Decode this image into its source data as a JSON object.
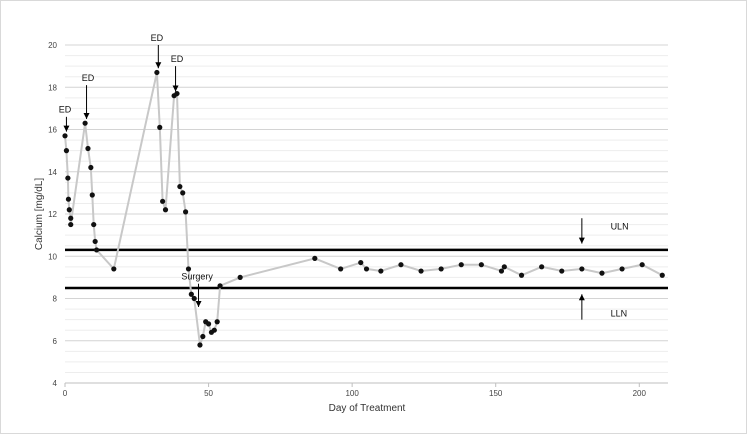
{
  "chart_data": {
    "type": "line",
    "xlabel": "Day of Treatment",
    "ylabel": "Calcium [mg/dL]",
    "xlim": [
      0,
      210
    ],
    "ylim": [
      4,
      20
    ],
    "x_ticks": [
      0,
      50,
      100,
      150,
      200
    ],
    "y_ticks": [
      4,
      6,
      8,
      10,
      12,
      14,
      16,
      18,
      20
    ],
    "grid": "horizontal",
    "series": [
      {
        "color": "#c8c8c8",
        "marker_color": "#111111",
        "points": [
          [
            0,
            15.7
          ],
          [
            0.5,
            15.0
          ],
          [
            1,
            13.7
          ],
          [
            1.2,
            12.7
          ],
          [
            1.5,
            12.2
          ],
          [
            2,
            11.8
          ],
          [
            2,
            11.5
          ],
          [
            7,
            16.3
          ],
          [
            8,
            15.1
          ],
          [
            9,
            14.2
          ],
          [
            9.5,
            12.9
          ],
          [
            10,
            11.5
          ],
          [
            10.5,
            10.7
          ],
          [
            11,
            10.3
          ],
          [
            17,
            9.4
          ],
          [
            32,
            18.7
          ],
          [
            33,
            16.1
          ],
          [
            34,
            12.6
          ],
          [
            35,
            12.2
          ],
          [
            38,
            17.6
          ],
          [
            39,
            17.7
          ],
          [
            40,
            13.3
          ],
          [
            41,
            13.0
          ],
          [
            42,
            12.1
          ],
          [
            43,
            9.4
          ],
          [
            44,
            8.2
          ],
          [
            45,
            8.0
          ],
          [
            47,
            5.8
          ],
          [
            48,
            6.2
          ],
          [
            49,
            6.9
          ],
          [
            50,
            6.8
          ],
          [
            51,
            6.4
          ],
          [
            52,
            6.5
          ],
          [
            53,
            6.9
          ],
          [
            54,
            8.6
          ],
          [
            61,
            9.0
          ],
          [
            87,
            9.9
          ],
          [
            96,
            9.4
          ],
          [
            103,
            9.7
          ],
          [
            105,
            9.4
          ],
          [
            110,
            9.3
          ],
          [
            117,
            9.6
          ],
          [
            124,
            9.3
          ],
          [
            131,
            9.4
          ],
          [
            138,
            9.6
          ],
          [
            145,
            9.6
          ],
          [
            152,
            9.3
          ],
          [
            153,
            9.5
          ],
          [
            159,
            9.1
          ],
          [
            166,
            9.5
          ],
          [
            173,
            9.3
          ],
          [
            180,
            9.4
          ],
          [
            187,
            9.2
          ],
          [
            194,
            9.4
          ],
          [
            201,
            9.6
          ],
          [
            208,
            9.1
          ]
        ]
      }
    ],
    "reference_lines": [
      {
        "y": 10.3,
        "label": "ULN",
        "label_x": 190,
        "label_y": 11.4,
        "arrow": "down",
        "arrow_x": 180,
        "arrow_from": 11.8,
        "arrow_to": 10.6,
        "color": "#000000"
      },
      {
        "y": 8.5,
        "label": "LLN",
        "label_x": 190,
        "label_y": 7.3,
        "arrow": "up",
        "arrow_x": 180,
        "arrow_from": 7.0,
        "arrow_to": 8.2,
        "color": "#000000"
      }
    ],
    "annotations": [
      {
        "text": "ED",
        "text_x": 0,
        "text_y": 16.8,
        "arrow_x": 0.5,
        "arrow_from": 16.6,
        "arrow_to": 15.9
      },
      {
        "text": "ED",
        "text_x": 8,
        "text_y": 18.3,
        "arrow_x": 7.5,
        "arrow_from": 18.1,
        "arrow_to": 16.5
      },
      {
        "text": "ED",
        "text_x": 32,
        "text_y": 20.2,
        "arrow_x": 32.5,
        "arrow_from": 20.0,
        "arrow_to": 18.9
      },
      {
        "text": "ED",
        "text_x": 39,
        "text_y": 19.2,
        "arrow_x": 38.5,
        "arrow_from": 19.0,
        "arrow_to": 17.8
      },
      {
        "text": "Surgery",
        "text_x": 46,
        "text_y": 8.9,
        "arrow_x": 46.5,
        "arrow_from": 8.7,
        "arrow_to": 7.6
      }
    ]
  }
}
